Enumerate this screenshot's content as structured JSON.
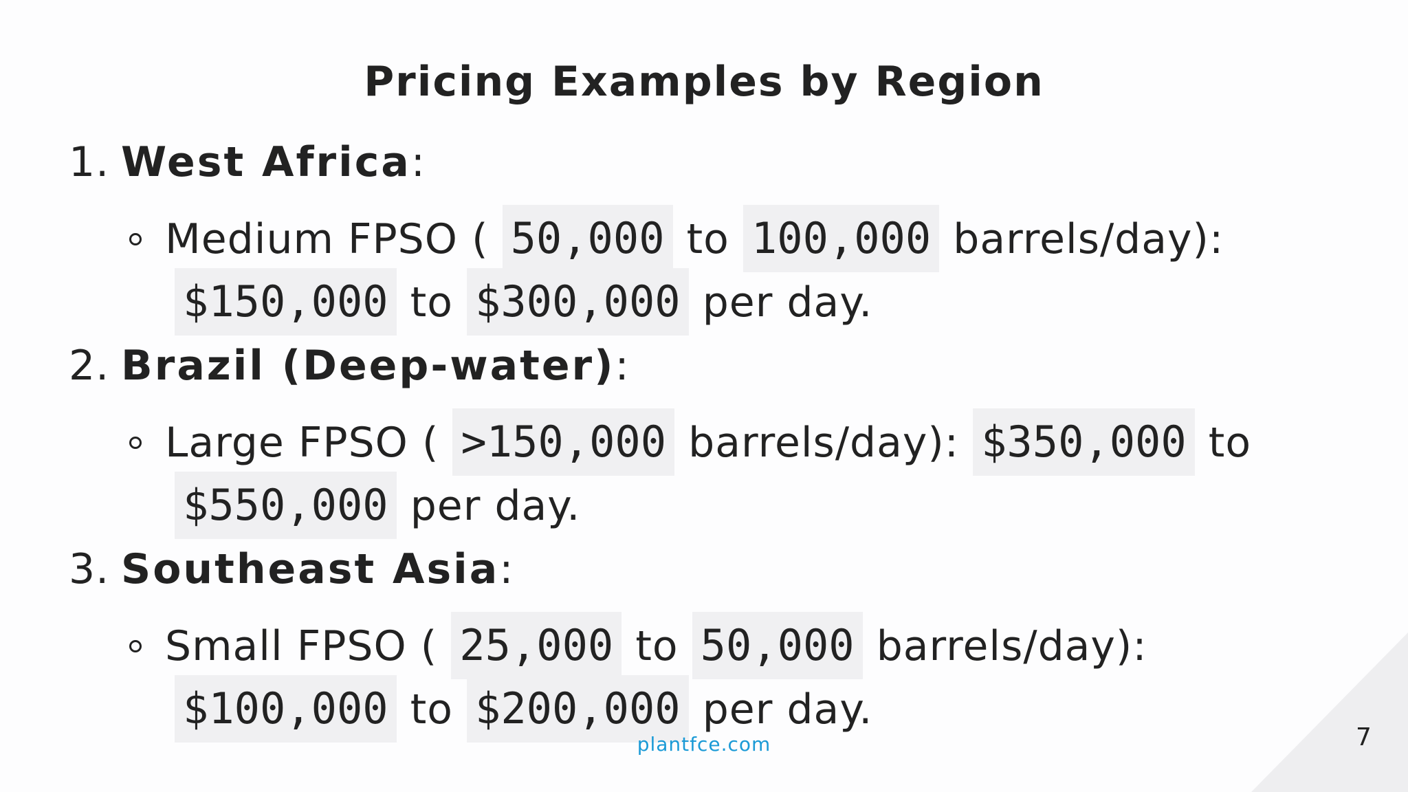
{
  "title": "Pricing Examples by Region",
  "regions": [
    {
      "number": "1.",
      "name": "West Africa",
      "suffix": ":",
      "line1": [
        "Medium FPSO (",
        "50,000",
        "to",
        "100,000",
        "barrels/day):"
      ],
      "line2": [
        "$150,000",
        "to",
        "$300,000",
        "per day."
      ]
    },
    {
      "number": "2.",
      "name": "Brazil (Deep-water)",
      "suffix": ":",
      "line1": [
        "Large FPSO (",
        ">150,000",
        "barrels/day):",
        "$350,000",
        "to"
      ],
      "line2": [
        "$550,000",
        "per day."
      ]
    },
    {
      "number": "3.",
      "name": "Southeast Asia",
      "suffix": ":",
      "line1": [
        "Small FPSO (",
        "25,000",
        "to",
        "50,000",
        "barrels/day):"
      ],
      "line2": [
        "$100,000",
        "to",
        "$200,000",
        "per day."
      ]
    }
  ],
  "footer": "plantfce.com",
  "page_number": "7"
}
